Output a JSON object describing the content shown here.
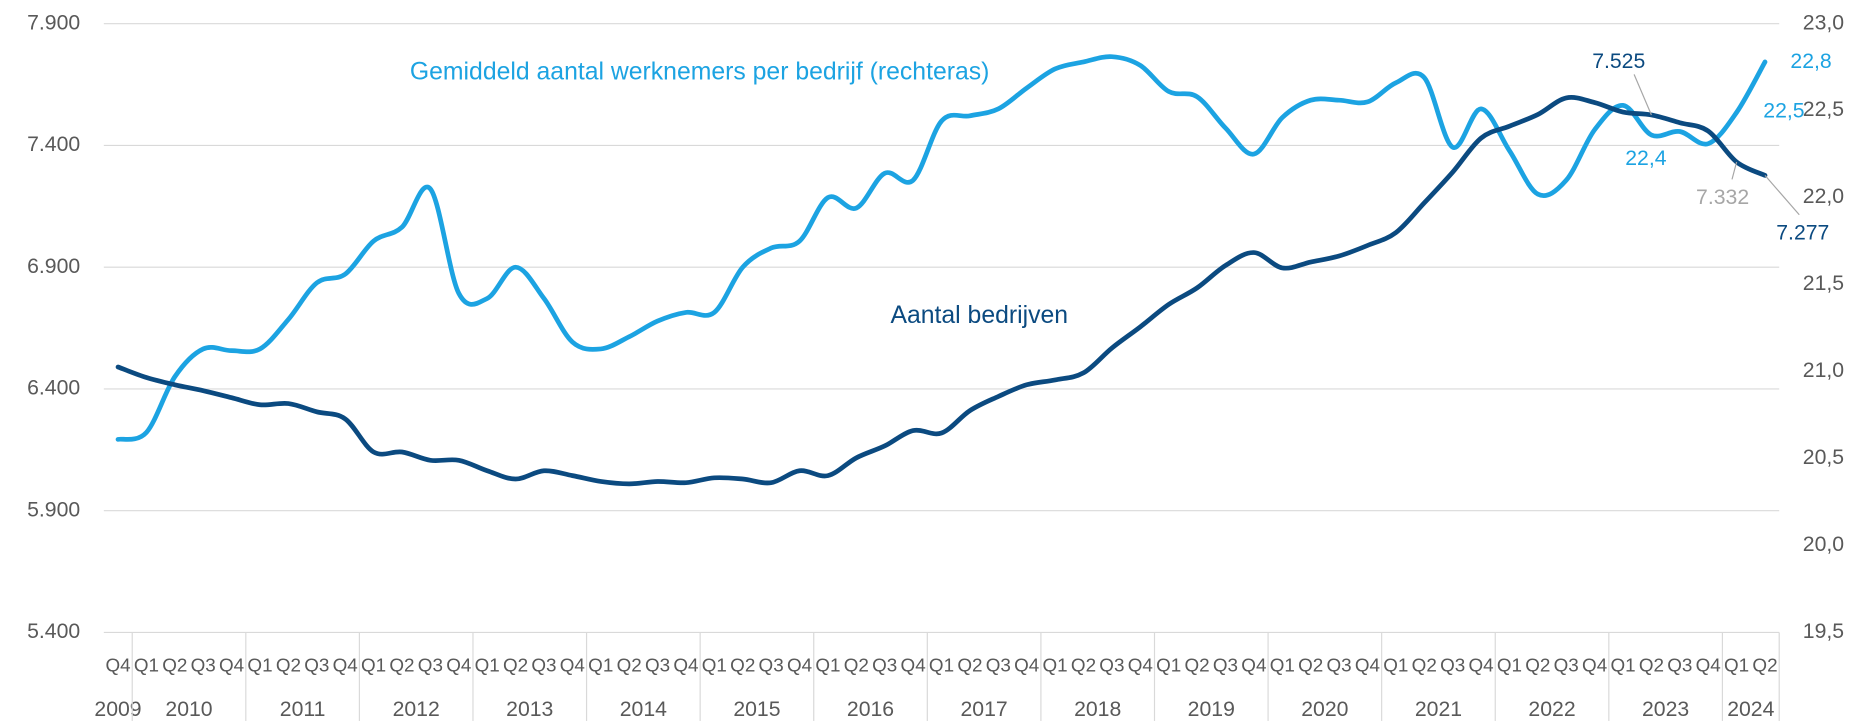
{
  "chart_data": {
    "type": "line",
    "categories": [
      "Q4",
      "Q1",
      "Q2",
      "Q3",
      "Q4",
      "Q1",
      "Q2",
      "Q3",
      "Q4",
      "Q1",
      "Q2",
      "Q3",
      "Q4",
      "Q1",
      "Q2",
      "Q3",
      "Q4",
      "Q1",
      "Q2",
      "Q3",
      "Q4",
      "Q1",
      "Q2",
      "Q3",
      "Q4",
      "Q1",
      "Q2",
      "Q3",
      "Q4",
      "Q1",
      "Q2",
      "Q3",
      "Q4",
      "Q1",
      "Q2",
      "Q3",
      "Q4",
      "Q1",
      "Q2",
      "Q3",
      "Q4",
      "Q1",
      "Q2",
      "Q3",
      "Q4",
      "Q1",
      "Q2",
      "Q3",
      "Q4",
      "Q1",
      "Q2",
      "Q3",
      "Q4",
      "Q1",
      "Q2",
      "Q3",
      "Q4",
      "Q1",
      "Q2"
    ],
    "years": [
      "2009",
      "2010",
      "2011",
      "2012",
      "2013",
      "2014",
      "2015",
      "2016",
      "2017",
      "2018",
      "2019",
      "2020",
      "2021",
      "2022",
      "2023",
      "2024"
    ],
    "ylim": [
      5400,
      7900
    ],
    "yticks": [
      {
        "value": 5400,
        "label": "5.400"
      },
      {
        "value": 5900,
        "label": "5.900"
      },
      {
        "value": 6400,
        "label": "6.400"
      },
      {
        "value": 6900,
        "label": "6.900"
      },
      {
        "value": 7400,
        "label": "7.400"
      },
      {
        "value": 7900,
        "label": "7.900"
      }
    ],
    "y2lim": [
      19.5,
      23.0
    ],
    "y2ticks": [
      {
        "value": 19.5,
        "label": "19,5"
      },
      {
        "value": 20.0,
        "label": "20,0"
      },
      {
        "value": 20.5,
        "label": "20,5"
      },
      {
        "value": 21.0,
        "label": "21,0"
      },
      {
        "value": 21.5,
        "label": "21,5"
      },
      {
        "value": 22.0,
        "label": "22,0"
      },
      {
        "value": 22.5,
        "label": "22,5"
      },
      {
        "value": 23.0,
        "label": "23,0"
      }
    ],
    "grid": true,
    "series": [
      {
        "name": "Gemiddeld aantal werknemers per bedrijf (rechteras)",
        "color": "#1ca3e2",
        "axis": "y2",
        "values": [
          20.61,
          20.65,
          20.97,
          21.13,
          21.12,
          21.13,
          21.3,
          21.51,
          21.56,
          21.75,
          21.83,
          22.05,
          21.45,
          21.42,
          21.6,
          21.42,
          21.17,
          21.13,
          21.2,
          21.29,
          21.34,
          21.34,
          21.6,
          21.71,
          21.75,
          22.0,
          21.94,
          22.14,
          22.1,
          22.44,
          22.47,
          22.51,
          22.63,
          22.74,
          22.78,
          22.81,
          22.76,
          22.61,
          22.58,
          22.4,
          22.25,
          22.46,
          22.56,
          22.56,
          22.55,
          22.66,
          22.69,
          22.29,
          22.51,
          22.27,
          22.02,
          22.1,
          22.39,
          22.53,
          22.36,
          22.38,
          22.31,
          22.49,
          22.78
        ],
        "value_labels": [
          null,
          null,
          null,
          null,
          null,
          null,
          null,
          null,
          null,
          null,
          null,
          null,
          null,
          null,
          null,
          null,
          null,
          null,
          null,
          null,
          null,
          null,
          null,
          null,
          null,
          null,
          null,
          null,
          null,
          null,
          null,
          null,
          null,
          null,
          null,
          null,
          null,
          null,
          null,
          null,
          null,
          null,
          null,
          null,
          null,
          null,
          null,
          null,
          null,
          null,
          null,
          null,
          null,
          null,
          "22,4",
          null,
          null,
          "22,5",
          "22,8"
        ]
      },
      {
        "name": "Aantal bedrijven",
        "color": "#0b4a80",
        "values": [
          6490,
          6447,
          6417,
          6393,
          6364,
          6335,
          6340,
          6306,
          6277,
          6141,
          6141,
          6107,
          6107,
          6064,
          6030,
          6064,
          6044,
          6020,
          6010,
          6020,
          6015,
          6035,
          6030,
          6015,
          6064,
          6044,
          6117,
          6166,
          6229,
          6219,
          6311,
          6369,
          6417,
          6437,
          6466,
          6568,
          6655,
          6747,
          6815,
          6907,
          6960,
          6897,
          6921,
          6946,
          6989,
          7042,
          7164,
          7290,
          7430,
          7479,
          7527,
          7595,
          7576,
          7537,
          7525,
          7493,
          7459,
          7332,
          7277
        ],
        "value_labels": [
          null,
          null,
          null,
          null,
          null,
          null,
          null,
          null,
          null,
          null,
          null,
          null,
          null,
          null,
          null,
          null,
          null,
          null,
          null,
          null,
          null,
          null,
          null,
          null,
          null,
          null,
          null,
          null,
          null,
          null,
          null,
          null,
          null,
          null,
          null,
          null,
          null,
          null,
          null,
          null,
          null,
          null,
          null,
          null,
          null,
          null,
          null,
          null,
          null,
          null,
          null,
          null,
          null,
          null,
          "7.525",
          null,
          null,
          "7.332",
          "7.277"
        ]
      }
    ]
  }
}
